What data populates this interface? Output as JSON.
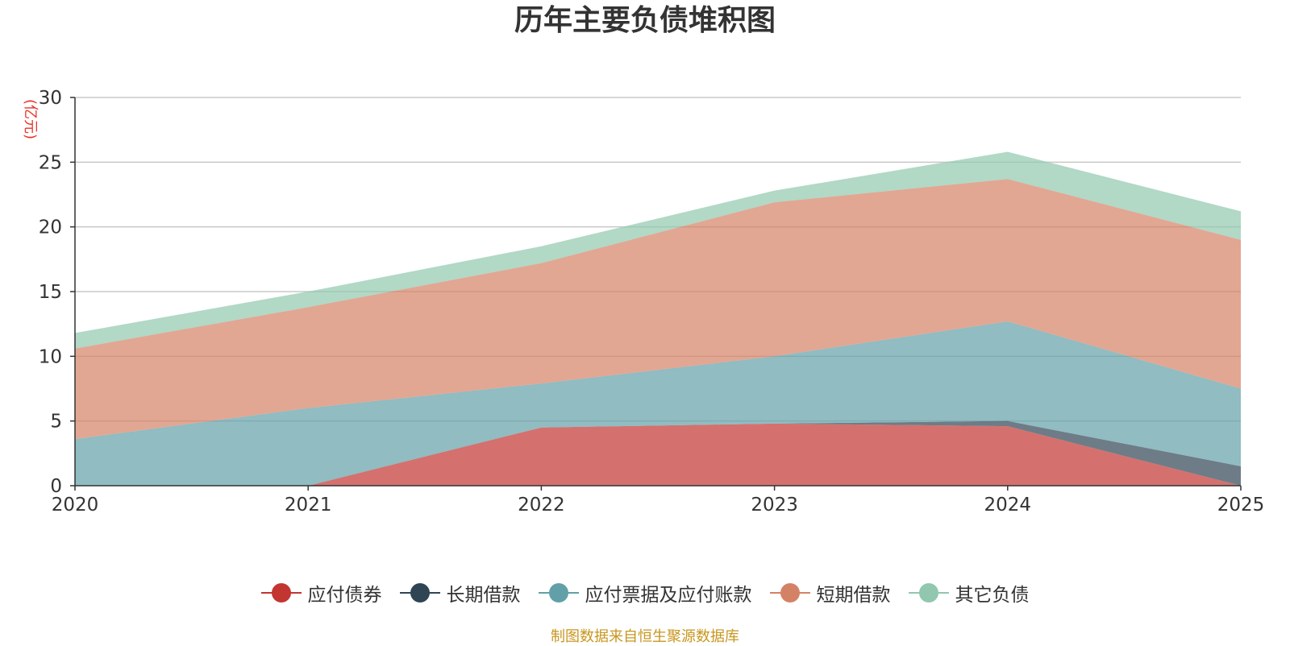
{
  "chart_data": {
    "type": "area",
    "stacked": true,
    "title": "历年主要负债堆积图",
    "ylabel": "(亿元)",
    "xlabel": "",
    "categories": [
      "2020",
      "2021",
      "2022",
      "2023",
      "2024",
      "2025"
    ],
    "ylim": [
      0,
      30
    ],
    "yticks": [
      0,
      5,
      10,
      15,
      20,
      25,
      30
    ],
    "grid": true,
    "legend_position": "bottom",
    "series": [
      {
        "name": "应付债券",
        "color": "#c23531",
        "values": [
          0,
          0,
          4.5,
          4.8,
          4.6,
          0
        ]
      },
      {
        "name": "长期借款",
        "color": "#2f4554",
        "values": [
          0,
          0,
          0,
          0,
          0.4,
          1.5
        ]
      },
      {
        "name": "应付票据及应付账款",
        "color": "#61a0a8",
        "values": [
          3.6,
          6.0,
          3.4,
          5.2,
          7.7,
          6.0
        ]
      },
      {
        "name": "短期借款",
        "color": "#d48265",
        "values": [
          7.0,
          7.8,
          9.3,
          11.9,
          11.0,
          11.5
        ]
      },
      {
        "name": "其它负债",
        "color": "#91c7ae",
        "values": [
          1.2,
          1.2,
          1.3,
          0.9,
          2.1,
          2.2
        ]
      }
    ]
  },
  "footer": {
    "source": "制图数据来自恒生聚源数据库"
  }
}
